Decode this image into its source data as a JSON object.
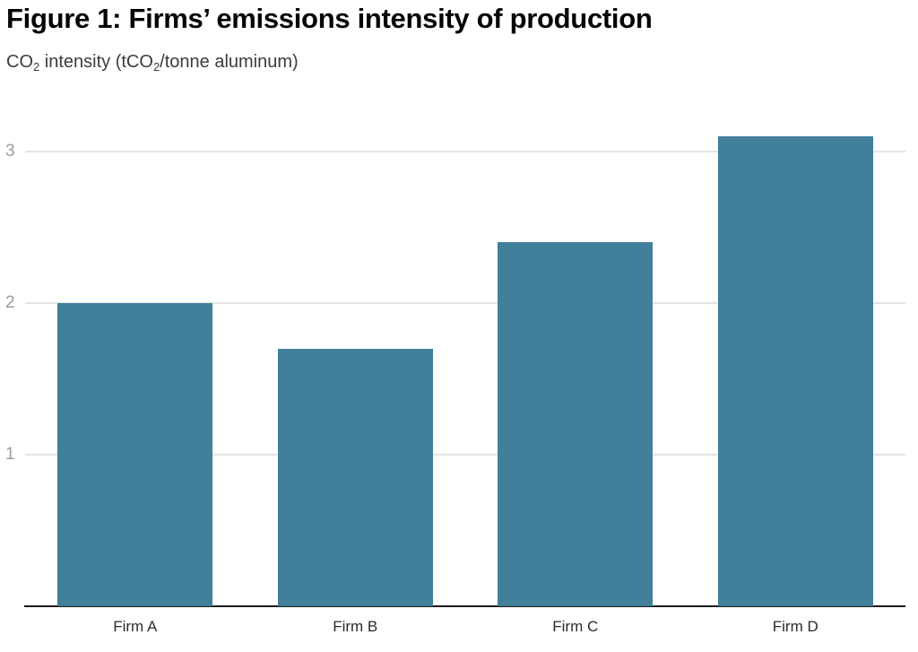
{
  "header": {
    "title": "Figure 1: Firms’ emissions intensity of production",
    "subtitle_parts": [
      "CO",
      "2",
      " intensity (tCO",
      "2",
      "/tonne aluminum)"
    ]
  },
  "chart_data": {
    "type": "bar",
    "title": "Figure 1: Firms’ emissions intensity of production",
    "subtitle": "CO2 intensity (tCO2/tonne aluminum)",
    "categories": [
      "Firm A",
      "Firm B",
      "Firm C",
      "Firm D"
    ],
    "values": [
      2.0,
      1.7,
      2.4,
      3.1
    ],
    "xlabel": "",
    "ylabel": "CO2 intensity (tCO2/tonne aluminum)",
    "yticks": [
      1,
      2,
      3
    ],
    "ylim": [
      0,
      3.32
    ],
    "grid": "horizontal-only",
    "legend": "none",
    "colors": {
      "bar": "#417F9B",
      "gridline": "#E4E4E4",
      "axis_line": "#1A1A1A",
      "tick_text": "#9C9C9C",
      "label_text": "#2B2B2B"
    }
  }
}
